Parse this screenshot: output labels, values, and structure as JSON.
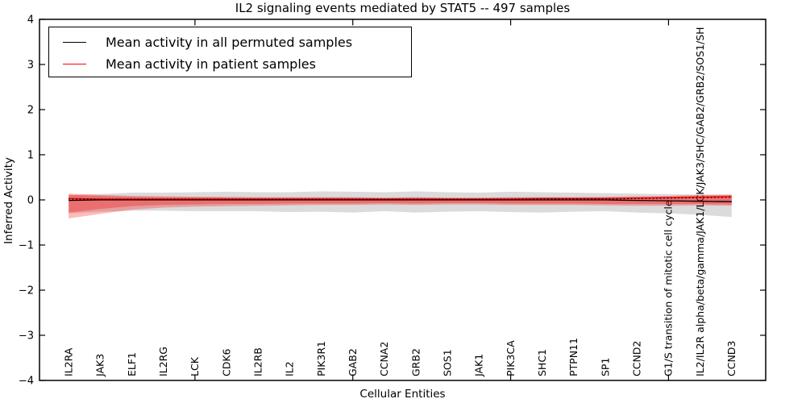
{
  "figure": {
    "title": "IL2 signaling events mediated by STAT5 -- 497 samples",
    "xlabel": "Cellular Entities",
    "ylabel": "Inferred Activity"
  },
  "legend": {
    "items": [
      {
        "label": "Mean activity in all permuted samples",
        "color": "#000000"
      },
      {
        "label": "Mean activity in patient samples",
        "color": "#ff0000"
      }
    ]
  },
  "chart_data": {
    "type": "line",
    "title": "IL2 signaling events mediated by STAT5 -- 497 samples",
    "xlabel": "Cellular Entities",
    "ylabel": "Inferred Activity",
    "ylim": [
      -4,
      4
    ],
    "ytick_values": [
      4,
      3,
      2,
      1,
      0,
      -1,
      -2,
      -3,
      -4
    ],
    "ytick_labels": [
      "4",
      "3",
      "2",
      "1",
      "0",
      "−1",
      "−2",
      "−3",
      "−4"
    ],
    "grid": false,
    "legend_position": "upper left",
    "categories": [
      "IL2RA",
      "JAK3",
      "ELF1",
      "IL2RG",
      "LCK",
      "CDK6",
      "IL2RB",
      "IL2",
      "PIK3R1",
      "GAB2",
      "CCNA2",
      "GRB2",
      "SOS1",
      "JAK1",
      "PIK3CA",
      "SHC1",
      "PTPN11",
      "SP1",
      "CCND2",
      "G1/S transition of mitotic cell cycle",
      "IL2/IL2R alpha/beta/gamma/JAK1/LCK/JAK3/SHC/GAB2/GRB2/SOS1/SH",
      "CCND3"
    ],
    "series": [
      {
        "name": "Mean activity in all permuted samples",
        "color": "#000000",
        "style": "solid",
        "values": [
          -0.01,
          0.0,
          0.0,
          0.0,
          0.0,
          0.0,
          0.0,
          0.0,
          0.0,
          0.0,
          0.0,
          0.0,
          0.0,
          0.0,
          0.0,
          0.0,
          0.0,
          0.0,
          -0.01,
          -0.02,
          -0.03,
          -0.04
        ]
      },
      {
        "name": "Mean activity in patient samples",
        "color": "#ff0000",
        "style": "solid",
        "values": [
          0.03,
          0.02,
          0.02,
          0.02,
          0.02,
          0.02,
          0.02,
          0.02,
          0.02,
          0.02,
          0.02,
          0.02,
          0.02,
          0.02,
          0.02,
          0.03,
          0.03,
          0.03,
          0.04,
          0.05,
          0.06,
          0.07
        ]
      },
      {
        "name": "permuted-median-dotted",
        "color": "#000000",
        "style": "dotted",
        "values": [
          0.02,
          0.01,
          0.01,
          0.01,
          0.01,
          0.01,
          0.01,
          0.01,
          0.01,
          0.01,
          0.01,
          0.01,
          0.01,
          0.01,
          0.01,
          0.02,
          0.02,
          0.02,
          0.03,
          0.04,
          0.05,
          0.06
        ]
      }
    ],
    "bands": [
      {
        "name": "permuted-std-band",
        "color": "#000000",
        "opacity": 0.14,
        "upper": [
          0.1,
          0.13,
          0.16,
          0.16,
          0.17,
          0.18,
          0.17,
          0.17,
          0.19,
          0.18,
          0.17,
          0.19,
          0.17,
          0.16,
          0.18,
          0.17,
          0.16,
          0.15,
          0.14,
          0.13,
          0.12,
          0.11
        ],
        "lower": [
          -0.3,
          -0.26,
          -0.24,
          -0.24,
          -0.25,
          -0.25,
          -0.25,
          -0.27,
          -0.26,
          -0.28,
          -0.25,
          -0.28,
          -0.26,
          -0.25,
          -0.27,
          -0.28,
          -0.26,
          -0.25,
          -0.28,
          -0.3,
          -0.33,
          -0.38
        ]
      },
      {
        "name": "patient-std-band-outer",
        "color": "#ff0000",
        "opacity": 0.27,
        "upper": [
          0.14,
          0.11,
          0.09,
          0.08,
          0.07,
          0.07,
          0.06,
          0.06,
          0.06,
          0.06,
          0.05,
          0.06,
          0.05,
          0.05,
          0.06,
          0.06,
          0.06,
          0.07,
          0.08,
          0.09,
          0.11,
          0.12
        ],
        "lower": [
          -0.41,
          -0.31,
          -0.22,
          -0.17,
          -0.15,
          -0.14,
          -0.13,
          -0.12,
          -0.11,
          -0.11,
          -0.1,
          -0.11,
          -0.1,
          -0.1,
          -0.11,
          -0.11,
          -0.11,
          -0.12,
          -0.13,
          -0.13,
          -0.12,
          -0.13
        ]
      },
      {
        "name": "patient-std-band-inner",
        "color": "#ff0000",
        "opacity": 0.3,
        "upper": [
          0.11,
          0.09,
          0.07,
          0.06,
          0.06,
          0.05,
          0.05,
          0.05,
          0.05,
          0.05,
          0.04,
          0.05,
          0.04,
          0.04,
          0.05,
          0.05,
          0.05,
          0.05,
          0.06,
          0.07,
          0.09,
          0.1
        ],
        "lower": [
          -0.28,
          -0.2,
          -0.14,
          -0.11,
          -0.1,
          -0.09,
          -0.09,
          -0.08,
          -0.08,
          -0.08,
          -0.07,
          -0.08,
          -0.07,
          -0.07,
          -0.08,
          -0.08,
          -0.08,
          -0.09,
          -0.09,
          -0.09,
          -0.09,
          -0.1
        ]
      }
    ]
  }
}
